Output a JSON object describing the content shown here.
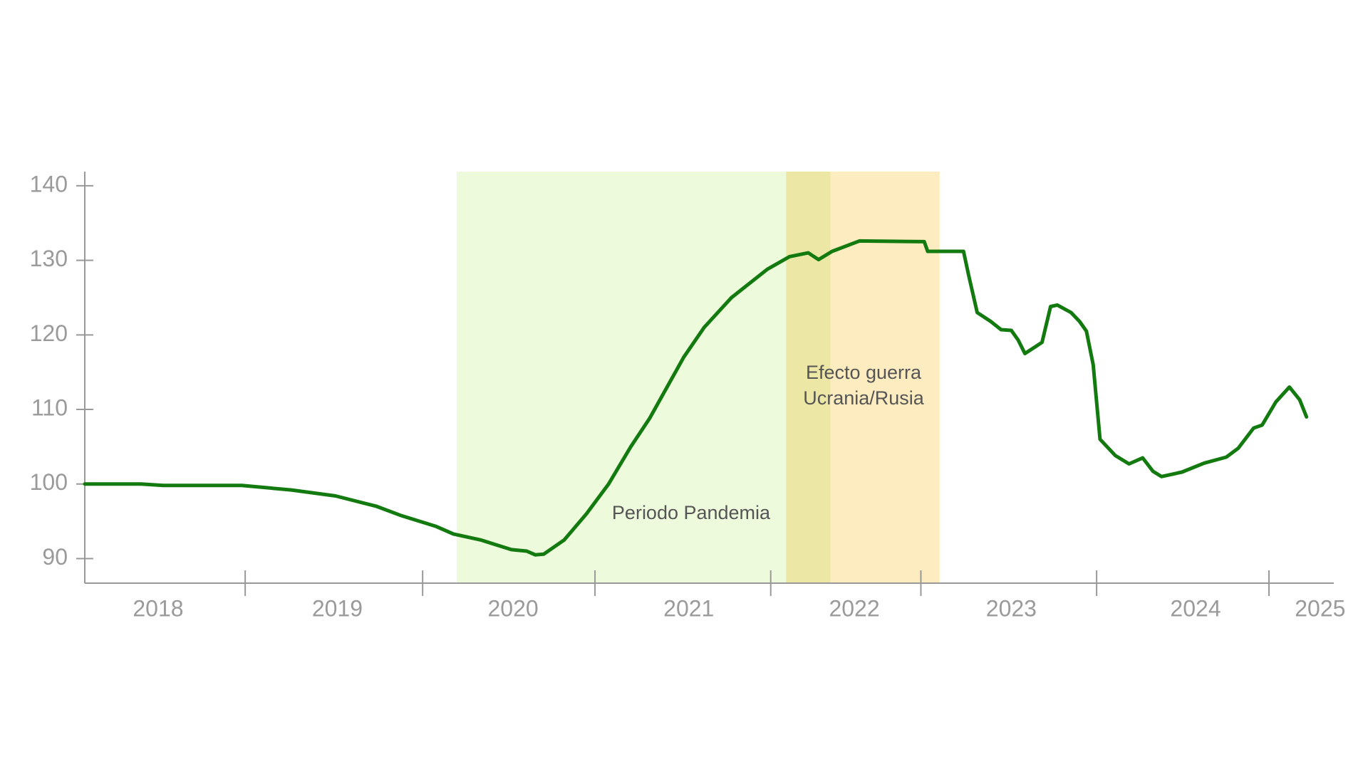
{
  "chart_data": {
    "type": "line",
    "color": "#137a10",
    "xlim": [
      2018.06,
      2025.38
    ],
    "ylim": [
      86.7,
      141.9
    ],
    "yticks": [
      90,
      100,
      110,
      120,
      130,
      140
    ],
    "xticks": [
      {
        "value": 2018.49,
        "label": "2018"
      },
      {
        "value": 2019.54,
        "label": "2019"
      },
      {
        "value": 2020.57,
        "label": "2020"
      },
      {
        "value": 2021.6,
        "label": "2021"
      },
      {
        "value": 2022.57,
        "label": "2022"
      },
      {
        "value": 2023.49,
        "label": "2023"
      },
      {
        "value": 2024.57,
        "label": "2024"
      },
      {
        "value": 2025.3,
        "label": "2025"
      }
    ],
    "xtick_marks": [
      2019.0,
      2020.04,
      2021.05,
      2022.08,
      2022.96,
      2023.99,
      2025.0
    ],
    "x": [
      2018.06,
      2018.39,
      2018.52,
      2018.98,
      2019.27,
      2019.53,
      2019.77,
      2019.91,
      2020.12,
      2020.22,
      2020.38,
      2020.56,
      2020.65,
      2020.7,
      2020.75,
      2020.87,
      2021.0,
      2021.13,
      2021.26,
      2021.37,
      2021.57,
      2021.69,
      2021.85,
      2022.06,
      2022.19,
      2022.3,
      2022.36,
      2022.44,
      2022.6,
      2022.98,
      2023.0,
      2023.21,
      2023.24,
      2023.29,
      2023.37,
      2023.43,
      2023.49,
      2023.53,
      2023.57,
      2023.63,
      2023.67,
      2023.72,
      2023.76,
      2023.84,
      2023.89,
      2023.93,
      2023.97,
      2024.01,
      2024.1,
      2024.18,
      2024.26,
      2024.32,
      2024.37,
      2024.49,
      2024.62,
      2024.75,
      2024.82,
      2024.91,
      2024.96,
      2025.04,
      2025.12,
      2025.18,
      2025.22
    ],
    "values": [
      100,
      100,
      99.8,
      99.8,
      99.2,
      98.4,
      97,
      95.8,
      94.3,
      93.3,
      92.5,
      91.2,
      91,
      90.5,
      90.6,
      92.5,
      96,
      100,
      105,
      108.8,
      117,
      121,
      125,
      128.8,
      130.5,
      131,
      130.1,
      131.2,
      132.6,
      132.5,
      131.2,
      131.2,
      128,
      123,
      121.8,
      120.7,
      120.6,
      119.3,
      117.5,
      118.4,
      119,
      123.8,
      124,
      123,
      121.8,
      120.5,
      116,
      106,
      103.8,
      102.7,
      103.5,
      101.7,
      101,
      101.6,
      102.8,
      103.6,
      104.8,
      107.5,
      107.9,
      111,
      113,
      111.3,
      109
    ],
    "regions": [
      {
        "label": [
          "Periodo Pandemia"
        ],
        "start": 2020.24,
        "end": 2022.43,
        "color": "#eefadc"
      },
      {
        "label": [
          "Efecto guerra",
          "Ucrania/Rusia"
        ],
        "start": 2022.17,
        "end": 2023.07,
        "color": "#fdecc0"
      }
    ]
  }
}
